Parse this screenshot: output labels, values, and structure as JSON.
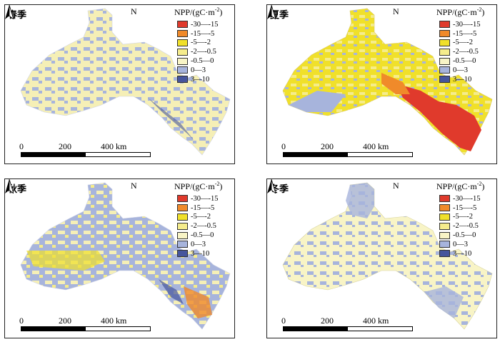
{
  "legend": {
    "title_main": "NPP/(gC·m",
    "title_sup": "-2",
    "title_end": ")",
    "items": [
      {
        "label": "-30—-15",
        "color": "#e03a2c"
      },
      {
        "label": "-15—-5",
        "color": "#f08a2a"
      },
      {
        "label": "-5—-2",
        "color": "#f0e02a"
      },
      {
        "label": "-2—-0.5",
        "color": "#f5ec8c"
      },
      {
        "label": "-0.5—0",
        "color": "#f8f4c6"
      },
      {
        "label": "0—3",
        "color": "#a7b4dc"
      },
      {
        "label": "3—10",
        "color": "#46559c"
      }
    ]
  },
  "north_label": "N",
  "scale_labels": [
    "0",
    "200",
    "400 km"
  ],
  "panels": [
    {
      "season": "春季"
    },
    {
      "season": "夏季"
    },
    {
      "season": "秋季"
    },
    {
      "season": "冬季"
    }
  ]
}
